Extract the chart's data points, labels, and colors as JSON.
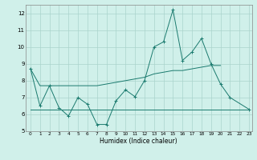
{
  "xlabel": "Humidex (Indice chaleur)",
  "x": [
    0,
    1,
    2,
    3,
    4,
    5,
    6,
    7,
    8,
    9,
    10,
    11,
    12,
    13,
    14,
    15,
    16,
    17,
    18,
    19,
    20,
    21,
    22,
    23
  ],
  "line1_y": [
    8.7,
    6.5,
    7.7,
    6.4,
    5.9,
    7.0,
    6.6,
    5.4,
    5.4,
    6.8,
    7.45,
    7.05,
    8.0,
    10.0,
    10.3,
    12.2,
    9.2,
    9.7,
    10.5,
    9.0,
    7.8,
    7.0,
    null,
    6.3
  ],
  "line2_y": [
    8.7,
    7.7,
    7.7,
    7.7,
    7.7,
    7.7,
    7.7,
    7.7,
    7.8,
    7.9,
    8.0,
    8.1,
    8.2,
    8.4,
    8.5,
    8.6,
    8.6,
    8.7,
    8.8,
    8.9,
    8.9,
    null,
    null,
    null
  ],
  "line3_y": [
    6.3,
    6.3,
    6.3,
    6.3,
    6.3,
    6.3,
    6.3,
    6.3,
    6.3,
    6.3,
    6.3,
    6.3,
    6.3,
    6.3,
    6.3,
    6.3,
    6.3,
    6.3,
    6.3,
    6.3,
    6.3,
    6.3,
    6.3,
    6.3
  ],
  "color": "#1a7a6e",
  "bg_color": "#d0f0ea",
  "grid_color": "#aad4cc",
  "ylim": [
    5,
    12.5
  ],
  "xlim": [
    -0.5,
    23.3
  ],
  "yticks": [
    5,
    6,
    7,
    8,
    9,
    10,
    11,
    12
  ],
  "xticks": [
    0,
    1,
    2,
    3,
    4,
    5,
    6,
    7,
    8,
    9,
    10,
    11,
    12,
    13,
    14,
    15,
    16,
    17,
    18,
    19,
    20,
    21,
    22,
    23
  ]
}
